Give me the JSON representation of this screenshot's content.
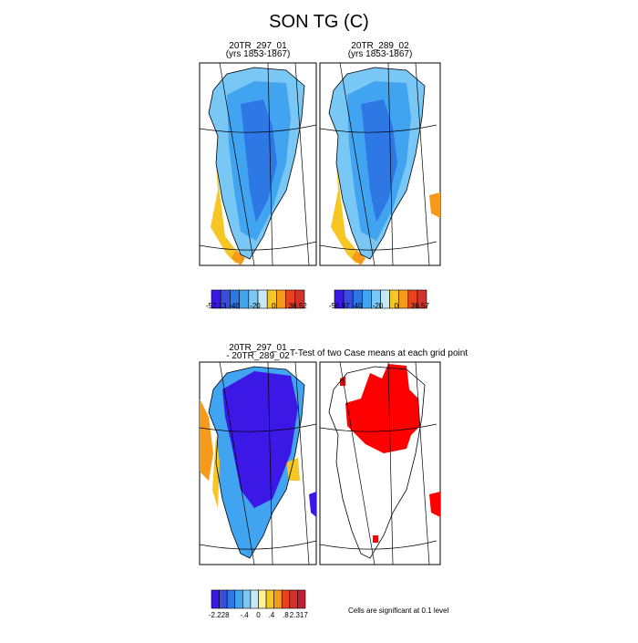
{
  "title": "SON TG (C)",
  "panels": [
    {
      "line1": "20TR_297_01",
      "line2": "(yrs 1853-1867)"
    },
    {
      "line1": "20TR_289_02",
      "line2": "(yrs 1853-1867)"
    },
    {
      "line1": "20TR_297_01",
      "line2": "- 20TR_289_02"
    },
    {
      "line1": "T-Test of two Case means at each grid point"
    }
  ],
  "colorbars": [
    {
      "colors": [
        "#3c18e6",
        "#3b4ce0",
        "#2e78e6",
        "#41a4f0",
        "#79c7f5",
        "#c8e8f7",
        "#f5c624",
        "#f59a1a",
        "#e8421e",
        "#d2322a"
      ],
      "labels": [
        "-57.13",
        "-40",
        "-20",
        "0",
        "36.52"
      ]
    },
    {
      "colors": [
        "#3c18e6",
        "#3b4ce0",
        "#2e78e6",
        "#41a4f0",
        "#79c7f5",
        "#c8e8f7",
        "#f5c624",
        "#f59a1a",
        "#e8421e",
        "#d2322a"
      ],
      "labels": [
        "-56.97",
        "-40",
        "-20",
        "0",
        "36.57"
      ]
    },
    {
      "colors": [
        "#3c18e6",
        "#3b4ce0",
        "#2e78e6",
        "#41a4f0",
        "#79c7f5",
        "#c8e8f7",
        "#fbf0a0",
        "#f5c624",
        "#f59a1a",
        "#e8421e",
        "#d2322a",
        "#c02030"
      ],
      "labels": [
        "-2.228",
        "-.4",
        "0",
        ".4",
        ".8",
        "2.317"
      ]
    }
  ],
  "note": "Cells are significant at 0.1 level"
}
